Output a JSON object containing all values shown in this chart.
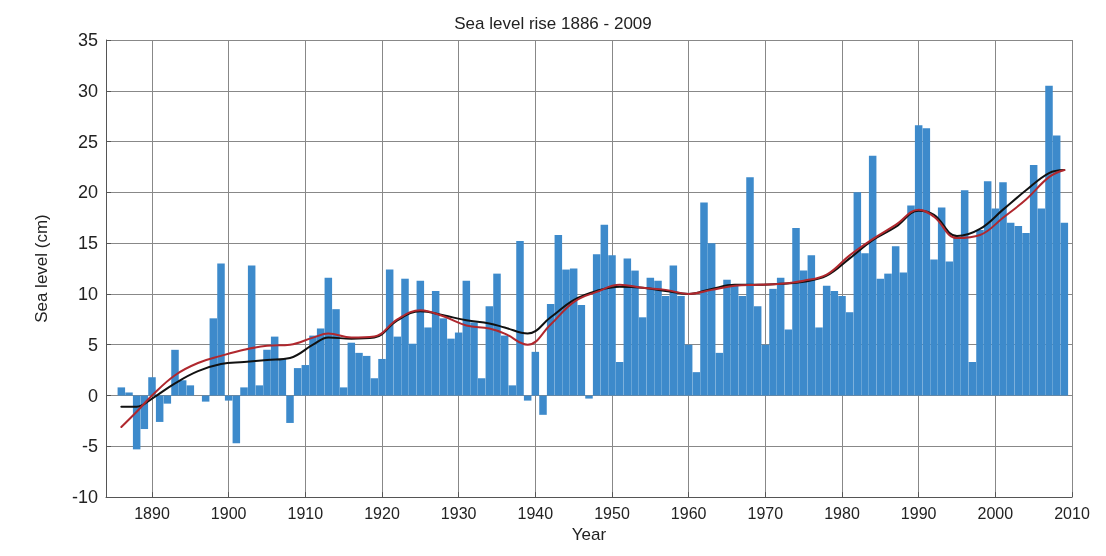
{
  "chart_data": {
    "type": "bar",
    "title": "Sea level rise 1886 - 2009",
    "xlabel": "Year",
    "ylabel": "Sea level (cm)",
    "xlim": [
      1884,
      2010
    ],
    "xticks": [
      1890,
      1900,
      1910,
      1920,
      1930,
      1940,
      1950,
      1960,
      1970,
      1980,
      1990,
      2000,
      2010
    ],
    "ylim": [
      -10,
      35
    ],
    "yticks": [
      -10,
      -5,
      0,
      5,
      10,
      15,
      20,
      25,
      30,
      35
    ],
    "grid": true,
    "marker": "none",
    "line_style": "solid",
    "series": [
      {
        "color": "#3d8acb",
        "x": [
          1886,
          1887,
          1888,
          1889,
          1890,
          1891,
          1892,
          1893,
          1894,
          1895,
          1896,
          1897,
          1898,
          1899,
          1900,
          1901,
          1902,
          1903,
          1904,
          1905,
          1906,
          1907,
          1908,
          1909,
          1910,
          1911,
          1912,
          1913,
          1914,
          1915,
          1916,
          1917,
          1918,
          1919,
          1920,
          1921,
          1922,
          1923,
          1924,
          1925,
          1926,
          1927,
          1928,
          1929,
          1930,
          1931,
          1932,
          1933,
          1934,
          1935,
          1936,
          1937,
          1938,
          1939,
          1940,
          1941,
          1942,
          1943,
          1944,
          1945,
          1946,
          1947,
          1948,
          1949,
          1950,
          1951,
          1952,
          1953,
          1954,
          1955,
          1956,
          1957,
          1958,
          1959,
          1960,
          1961,
          1962,
          1963,
          1964,
          1965,
          1966,
          1967,
          1968,
          1969,
          1970,
          1971,
          1972,
          1973,
          1974,
          1975,
          1976,
          1977,
          1978,
          1979,
          1980,
          1981,
          1982,
          1983,
          1984,
          1985,
          1986,
          1987,
          1988,
          1989,
          1990,
          1991,
          1992,
          1993,
          1994,
          1995,
          1996,
          1997,
          1998,
          1999,
          2000,
          2001,
          2002,
          2003,
          2004,
          2005,
          2006,
          2007,
          2008,
          2009
        ],
        "values": [
          0.8,
          0.3,
          -5.3,
          -3.3,
          1.8,
          -2.6,
          -0.8,
          4.5,
          1.5,
          1,
          0,
          -0.6,
          7.6,
          13,
          -0.5,
          -4.7,
          0.8,
          12.8,
          1,
          4.5,
          5.8,
          3.6,
          -2.7,
          2.7,
          3,
          5.9,
          6.6,
          11.6,
          8.5,
          0.8,
          5.2,
          4.2,
          3.9,
          1.7,
          3.6,
          12.4,
          5.8,
          11.5,
          5.1,
          11.3,
          6.7,
          10.3,
          7.6,
          5.6,
          6.2,
          11.3,
          7.2,
          1.7,
          8.8,
          12,
          5.9,
          1,
          15.2,
          -0.5,
          4.3,
          -1.9,
          9,
          15.8,
          12.4,
          12.5,
          8.9,
          -0.3,
          13.9,
          16.8,
          13.8,
          3.3,
          13.5,
          12.3,
          7.7,
          11.6,
          11.3,
          9.8,
          12.8,
          9.8,
          5,
          2.3,
          19,
          15,
          4.2,
          11.4,
          10.8,
          9.8,
          21.5,
          8.8,
          5,
          10.5,
          11.6,
          6.5,
          16.5,
          12.3,
          13.8,
          6.7,
          10.8,
          10.3,
          9.8,
          8.2,
          20,
          14,
          23.6,
          11.5,
          12,
          14.7,
          12.1,
          18.7,
          26.6,
          26.3,
          13.4,
          18.5,
          13.2,
          15.5,
          20.2,
          3.3,
          16.3,
          21.1,
          18.4,
          21,
          17,
          16.7,
          16,
          22.7,
          18.4,
          30.5,
          25.6,
          17
        ]
      },
      {
        "type": "line",
        "color": "#111111",
        "x": [
          1886,
          1888,
          1890,
          1893,
          1896,
          1899,
          1902,
          1905,
          1908,
          1911,
          1913,
          1916,
          1919,
          1922,
          1925,
          1928,
          1931,
          1934,
          1936,
          1939,
          1942,
          1945,
          1948,
          1951,
          1954,
          1957,
          1960,
          1963,
          1966,
          1969,
          1972,
          1975,
          1978,
          1981,
          1984,
          1987,
          1990,
          1992,
          1995,
          1998,
          2001,
          2004,
          2007,
          2009
        ],
        "values": [
          -1.1,
          -1.1,
          -0.3,
          1.2,
          2.4,
          3.1,
          3.3,
          3.5,
          3.7,
          5,
          5.7,
          5.6,
          5.7,
          7.4,
          8.3,
          7.9,
          7.4,
          7.1,
          6.7,
          6.1,
          7.7,
          9.4,
          10.3,
          10.7,
          10.6,
          10.3,
          10,
          10.5,
          10.9,
          10.9,
          11,
          11.2,
          11.8,
          13.5,
          15.3,
          16.6,
          18.2,
          17.8,
          15.7,
          16.4,
          18.3,
          20.2,
          21.9,
          22.2
        ]
      },
      {
        "type": "line",
        "color": "#b0282e",
        "x": [
          1886,
          1888,
          1890,
          1893,
          1896,
          1899,
          1902,
          1905,
          1908,
          1911,
          1913,
          1916,
          1919,
          1922,
          1925,
          1928,
          1931,
          1934,
          1936,
          1939,
          1942,
          1945,
          1948,
          1951,
          1954,
          1957,
          1960,
          1963,
          1966,
          1969,
          1972,
          1975,
          1978,
          1981,
          1984,
          1987,
          1990,
          1992,
          1995,
          1998,
          2001,
          2004,
          2007,
          2009
        ],
        "values": [
          -3.1,
          -1.6,
          0,
          2,
          3.2,
          3.9,
          4.5,
          4.9,
          5,
          5.7,
          6.1,
          5.7,
          5.8,
          7.5,
          8.4,
          7.8,
          6.9,
          6.6,
          6.1,
          5,
          7,
          9.2,
          10.2,
          10.9,
          10.6,
          10.4,
          10,
          10.4,
          10.8,
          10.9,
          11,
          11.3,
          11.9,
          13.8,
          15.4,
          16.8,
          18.3,
          17.6,
          15.5,
          15.8,
          17.5,
          19.3,
          21.5,
          22.2
        ]
      }
    ]
  }
}
